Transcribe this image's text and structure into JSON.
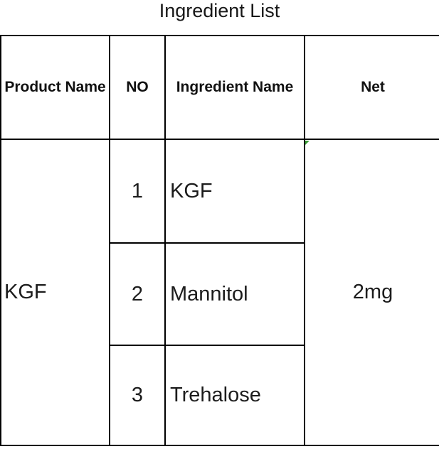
{
  "title": "Ingredient List",
  "table": {
    "headers": {
      "product": "Product Name",
      "no": "NO",
      "ingredient": "Ingredient Name",
      "net": "Net"
    },
    "product_name": "KGF",
    "net_value": "2mg",
    "rows": [
      {
        "no": "1",
        "ingredient": "KGF"
      },
      {
        "no": "2",
        "ingredient": "Mannitol"
      },
      {
        "no": "3",
        "ingredient": "Trehalose"
      }
    ],
    "error_indicator_color": "#3a9b35",
    "border_color": "#000000",
    "background_color": "#ffffff"
  }
}
